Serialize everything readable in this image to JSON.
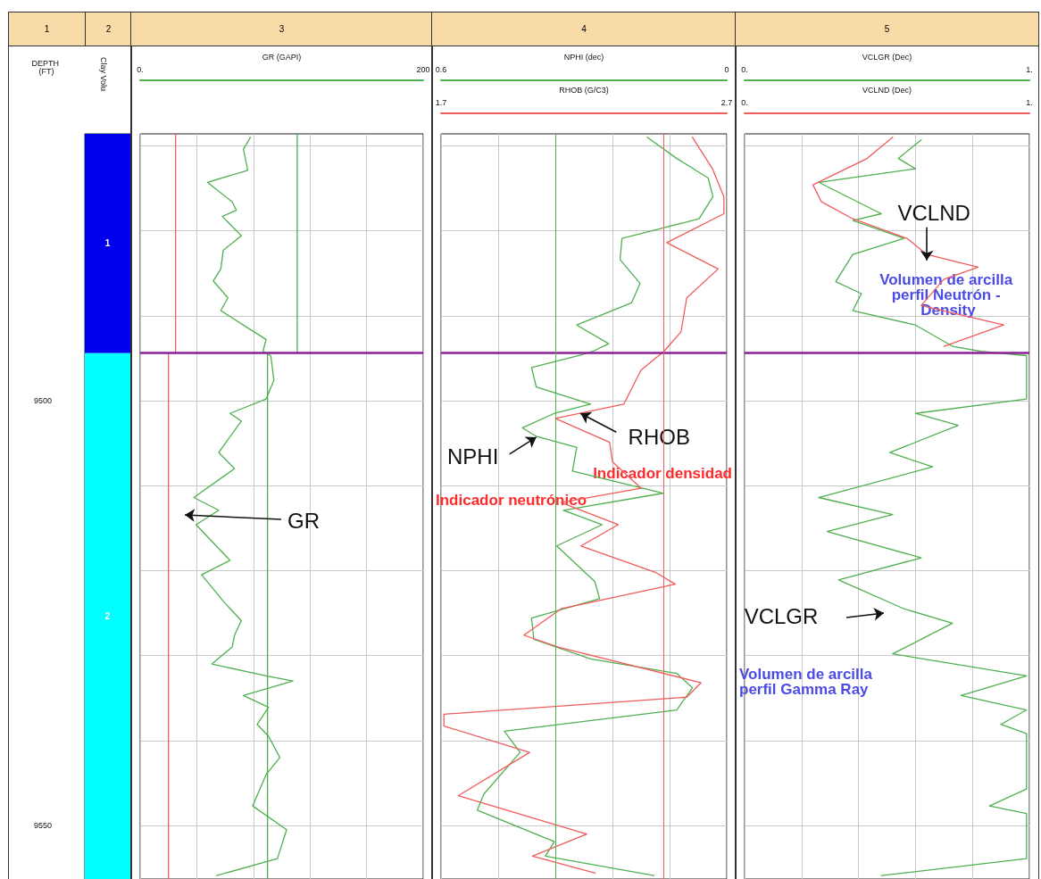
{
  "chart_data": [
    {
      "type": "bar",
      "title": "1",
      "ylabel": "DEPTH (FT)",
      "categories": [
        null
      ],
      "tick_labels": "y",
      "ylim": [
        9556.3,
        9468.6
      ],
      "yticks": [
        9500,
        9550
      ],
      "series": [
        {
          "name": "1",
          "color": "#0000f0",
          "base": [
            9468.6
          ],
          "values": [
            25.8
          ]
        },
        {
          "name": "2",
          "color": "#00ffff",
          "base": [
            9494.4
          ],
          "values": [
            61.9
          ]
        }
      ],
      "annotations": [
        "2",
        "Clay Volu"
      ]
    },
    {
      "type": "line",
      "title": "3",
      "xlabel": "GR (GAPI)",
      "xlim": [
        0,
        200
      ],
      "xticks": [
        {
          "value": 0,
          "label": "0."
        },
        {
          "value": 40,
          "label": null
        },
        {
          "value": 80,
          "label": null
        },
        {
          "value": 120,
          "label": null
        },
        {
          "value": 160,
          "label": null
        },
        200
      ],
      "ylim": [
        9556.3,
        9468.6
      ],
      "yticks": [
        {
          "value": 9470,
          "label": null
        },
        {
          "value": 9480,
          "label": null
        },
        {
          "value": 9490,
          "label": null
        },
        {
          "value": 9500,
          "label": null
        },
        {
          "value": 9510,
          "label": null
        },
        {
          "value": 9520,
          "label": null
        },
        {
          "value": 9530,
          "label": null
        },
        {
          "value": 9540,
          "label": null
        },
        {
          "value": 9550,
          "label": null
        }
      ],
      "tick_labels": "x",
      "grid": true,
      "series": [
        {
          "color": "#4fb04f",
          "x": [
            77.9,
            73,
            76,
            47.5,
            65,
            68,
            58,
            71.5,
            58.7,
            57,
            51.7,
            62,
            57,
            74.7,
            89,
            86.8,
            92.3,
            94.5,
            89,
            63.5,
            71.5,
            55.5,
            66.7,
            37.9,
            55.5,
            39.5,
            63.5,
            43.4,
            58.7,
            71.5,
            66.7,
            65,
            50.7,
            89,
            108,
            73,
            90.7,
            82.7,
            90.7,
            98.7,
            89,
            79.5,
            103.5,
            97,
            54
          ],
          "values": [
            9469.0,
            9470.4,
            9472.9,
            9474.3,
            9476.6,
            9477.6,
            9478.3,
            9480.6,
            9482.3,
            9484.5,
            9485.9,
            9487.9,
            9489.4,
            9491.3,
            9492.8,
            9494.2,
            9494.7,
            9497.6,
            9499.8,
            9501.5,
            9502.4,
            9506.1,
            9508.0,
            9511.4,
            9512.9,
            9514.6,
            9518.8,
            9520.5,
            9523.6,
            9525.9,
            9527.6,
            9529.0,
            9531.0,
            9532.4,
            9533.0,
            9534.7,
            9536.1,
            9538.1,
            9539.5,
            9542.0,
            9544.0,
            9547.7,
            9550.5,
            9553.9,
            9555.9
          ]
        },
        {
          "color": "#f25b5b",
          "x": [
            25,
            25
          ],
          "values": [
            9468.6,
            9494.4
          ]
        },
        {
          "color": "#4fb04f",
          "x": [
            111,
            111
          ],
          "values": [
            9468.6,
            9494.4
          ]
        },
        {
          "color": "#f25b5b",
          "x": [
            20,
            20
          ],
          "values": [
            9494.4,
            9556.3
          ]
        },
        {
          "color": "#4fb04f",
          "x": [
            90,
            90
          ],
          "values": [
            9494.4,
            9556.3
          ]
        }
      ],
      "ref_lines": [
        {
          "axis": "y",
          "value": 9494.4,
          "color": "#8b1e99"
        }
      ],
      "annotations": [
        "GR"
      ]
    },
    {
      "type": "line",
      "title": "4",
      "xlabel": "NPHI (dec)",
      "x2label": "RHOB (G/C3)",
      "xlim": [
        0.6,
        0
      ],
      "xticks": [
        0.6,
        {
          "value": 0.48,
          "label": null
        },
        {
          "value": 0.36,
          "label": null
        },
        {
          "value": 0.24,
          "label": null
        },
        {
          "value": 0.12,
          "label": null
        },
        0
      ],
      "x2lim": [
        1.7,
        2.7
      ],
      "x2ticks": [
        1.7,
        2.7
      ],
      "ylim": [
        9556.3,
        9468.6
      ],
      "yticks": [
        {
          "value": 9470,
          "label": null
        },
        {
          "value": 9480,
          "label": null
        },
        {
          "value": 9490,
          "label": null
        },
        {
          "value": 9500,
          "label": null
        },
        {
          "value": 9510,
          "label": null
        },
        {
          "value": 9520,
          "label": null
        },
        {
          "value": 9530,
          "label": null
        },
        {
          "value": 9540,
          "label": null
        },
        {
          "value": 9550,
          "label": null
        }
      ],
      "tick_labels": "x",
      "grid": true,
      "series": [
        {
          "color": "#4fb04f",
          "x": [
            0.167,
            0.105,
            0.039,
            0.029,
            0.058,
            0.22,
            0.224,
            0.182,
            0.2,
            0.315,
            0.248,
            0.281,
            0.305,
            0.41,
            0.4,
            0.286,
            0.362,
            0.429,
            0.4,
            0.315,
            0.324,
            0.134,
            0.343,
            0.262,
            0.357,
            0.277,
            0.267,
            0.41,
            0.405,
            0.286,
            0.105,
            0.072,
            0.105,
            0.467,
            0.434,
            0.51,
            0.524,
            0.362,
            0.381,
            0.153
          ],
          "values": [
            9469.0,
            9471.5,
            9473.8,
            9476.0,
            9478.6,
            9480.9,
            9483.4,
            9486.2,
            9488.5,
            9491.1,
            9493.3,
            9494.2,
            9494.6,
            9496.1,
            9498.4,
            9500.4,
            9501.5,
            9503.2,
            9504.2,
            9505.5,
            9508.3,
            9510.9,
            9512.9,
            9514.6,
            9517.1,
            9521.3,
            9523.3,
            9525.6,
            9528.1,
            9530.4,
            9532.1,
            9533.8,
            9536.4,
            9538.9,
            9541.4,
            9546.3,
            9548.2,
            9551.9,
            9553.6,
            9555.9
          ]
        },
        {
          "color": "#f25b5b",
          "axis": "x2",
          "x": [
            2.58,
            2.65,
            2.69,
            2.69,
            2.49,
            2.67,
            2.56,
            2.54,
            2.48,
            2.4,
            2.34,
            2.1,
            2.29,
            2.3,
            2.4,
            2.12,
            2.32,
            2.19,
            2.45,
            2.52,
            2.12,
            1.99,
            2.11,
            2.61,
            2.56,
            1.71,
            1.71,
            2.01,
            1.76,
            2.21,
            2.02,
            2.24
          ],
          "values": [
            9469.0,
            9472.7,
            9476.0,
            9478.0,
            9481.4,
            9484.5,
            9487.9,
            9491.9,
            9494.2,
            9496.4,
            9500.4,
            9502.1,
            9504.9,
            9507.2,
            9510.3,
            9512.0,
            9514.6,
            9517.1,
            9520.2,
            9521.6,
            9524.5,
            9527.6,
            9529.0,
            9533.2,
            9534.9,
            9536.9,
            9538.3,
            9541.4,
            9546.5,
            9551.0,
            9553.6,
            9555.6
          ]
        }
      ],
      "ref_lines": [
        {
          "axis": "y",
          "value": 9494.4,
          "color": "#8b1e99"
        },
        {
          "axis": "x",
          "value": 0.36,
          "color": "#4fb04f"
        },
        {
          "axis": "x2",
          "value": 2.48,
          "color": "#f25b5b"
        }
      ],
      "annotations": [
        {
          "text": "NPHI",
          "x": 0.4,
          "y": 9504.3
        },
        {
          "text": "RHOB",
          "x": 0.307,
          "y": 9501.5
        },
        "Indicador neutrónico",
        "Indicador densidad"
      ]
    },
    {
      "type": "line",
      "title": "5",
      "xlabel": "VCLGR (Dec)",
      "x2label": "VCLND (Dec)",
      "xlim": [
        0,
        1
      ],
      "xticks": [
        {
          "value": 0,
          "label": "0."
        },
        {
          "value": 0.2,
          "label": null
        },
        {
          "value": 0.4,
          "label": null
        },
        {
          "value": 0.6,
          "label": null
        },
        {
          "value": 0.8,
          "label": null
        },
        {
          "value": 1,
          "label": "1."
        }
      ],
      "x2lim": [
        0,
        1
      ],
      "x2ticks": [
        {
          "value": 0,
          "label": "0."
        },
        {
          "value": 1,
          "label": "1."
        }
      ],
      "ylim": [
        9556.3,
        9468.6
      ],
      "yticks": [
        {
          "value": 9470,
          "label": null
        },
        {
          "value": 9480,
          "label": null
        },
        {
          "value": 9490,
          "label": null
        },
        {
          "value": 9500,
          "label": null
        },
        {
          "value": 9510,
          "label": null
        },
        {
          "value": 9520,
          "label": null
        },
        {
          "value": 9530,
          "label": null
        },
        {
          "value": 9540,
          "label": null
        },
        {
          "value": 9550,
          "label": null
        }
      ],
      "tick_labels": "x",
      "grid": true,
      "series": [
        {
          "color": "#4fb04f",
          "x": [
            0.62,
            0.54,
            0.6,
            0.26,
            0.48,
            0.38,
            0.56,
            0.38,
            0.32,
            0.41,
            0.38,
            0.6,
            0.73,
            0.83,
            0.99,
            0.99,
            0.6,
            0.75,
            0.51,
            0.66,
            0.26,
            0.52,
            0.29,
            0.62,
            0.33,
            0.56,
            0.73,
            0.52,
            0.99,
            0.76,
            0.99,
            0.9,
            0.99,
            0.99,
            0.86,
            0.99,
            0.99,
            0.48
          ],
          "values": [
            9469.3,
            9471.5,
            9472.7,
            9474.3,
            9478.0,
            9478.8,
            9480.9,
            9482.8,
            9486.0,
            9487.4,
            9489.4,
            9491.1,
            9493.6,
            9494.2,
            9494.7,
            9499.8,
            9501.5,
            9502.9,
            9506.1,
            9507.8,
            9511.4,
            9513.4,
            9515.4,
            9518.5,
            9521.1,
            9524.5,
            9526.2,
            9529.8,
            9532.4,
            9534.7,
            9536.4,
            9538.1,
            9539.2,
            9545.7,
            9547.7,
            9548.6,
            9553.9,
            9555.9
          ]
        },
        {
          "color": "#f25b5b",
          "axis": "x2",
          "x": [
            0.52,
            0.43,
            0.24,
            0.27,
            0.38,
            0.57,
            0.64,
            0.82,
            0.7,
            0.62,
            0.91,
            0.7
          ],
          "values": [
            9469.0,
            9471.5,
            9474.6,
            9476.6,
            9478.6,
            9480.9,
            9482.8,
            9484.3,
            9485.7,
            9488.8,
            9491.1,
            9493.6
          ]
        }
      ],
      "ref_lines": [
        {
          "axis": "y",
          "value": 9494.4,
          "color": "#8b1e99"
        }
      ],
      "annotations": [
        {
          "text": "VCLND",
          "x": 0.64,
          "y": 9483.5
        },
        "Volumen de arcilla perfil Neutrón - Density",
        "VCLGR",
        "Volumen de arcilla perfil Gamma Ray"
      ]
    }
  ]
}
